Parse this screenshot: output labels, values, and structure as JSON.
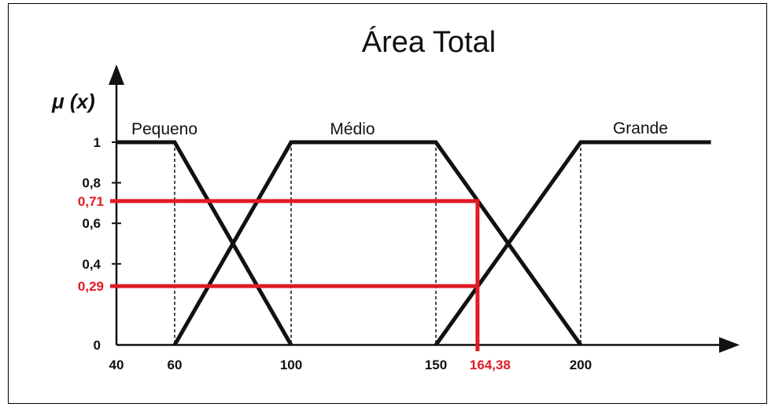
{
  "chart_data": {
    "type": "line",
    "title": "Área Total",
    "ylabel": "μ (x)",
    "xlabel": "",
    "x_ticks": [
      {
        "value": 40,
        "label": "40"
      },
      {
        "value": 60,
        "label": "60"
      },
      {
        "value": 100,
        "label": "100"
      },
      {
        "value": 150,
        "label": "150"
      },
      {
        "value": 200,
        "label": "200"
      }
    ],
    "y_ticks": [
      {
        "value": 0,
        "label": "0"
      },
      {
        "value": 0.4,
        "label": "0,4"
      },
      {
        "value": 0.6,
        "label": "0,6"
      },
      {
        "value": 0.8,
        "label": "0,8"
      },
      {
        "value": 1,
        "label": "1"
      }
    ],
    "xlim": [
      40,
      250
    ],
    "ylim": [
      0,
      1.2
    ],
    "series": [
      {
        "name": "Pequeno",
        "points": [
          [
            40,
            1
          ],
          [
            60,
            1
          ],
          [
            100,
            0
          ]
        ]
      },
      {
        "name": "Médio",
        "points": [
          [
            60,
            0
          ],
          [
            100,
            1
          ],
          [
            150,
            1
          ],
          [
            200,
            0
          ]
        ]
      },
      {
        "name": "Grande",
        "points": [
          [
            150,
            0
          ],
          [
            200,
            1
          ],
          [
            245,
            1
          ]
        ]
      }
    ],
    "guide_lines_x": [
      60,
      100,
      150,
      200
    ],
    "highlight": {
      "x": 164.38,
      "x_label": "164,38",
      "levels": [
        {
          "value": 0.71,
          "label": "0,71"
        },
        {
          "value": 0.29,
          "label": "0,29"
        }
      ],
      "color": "#e01b24"
    },
    "line_color": "#111111",
    "grid": false
  }
}
